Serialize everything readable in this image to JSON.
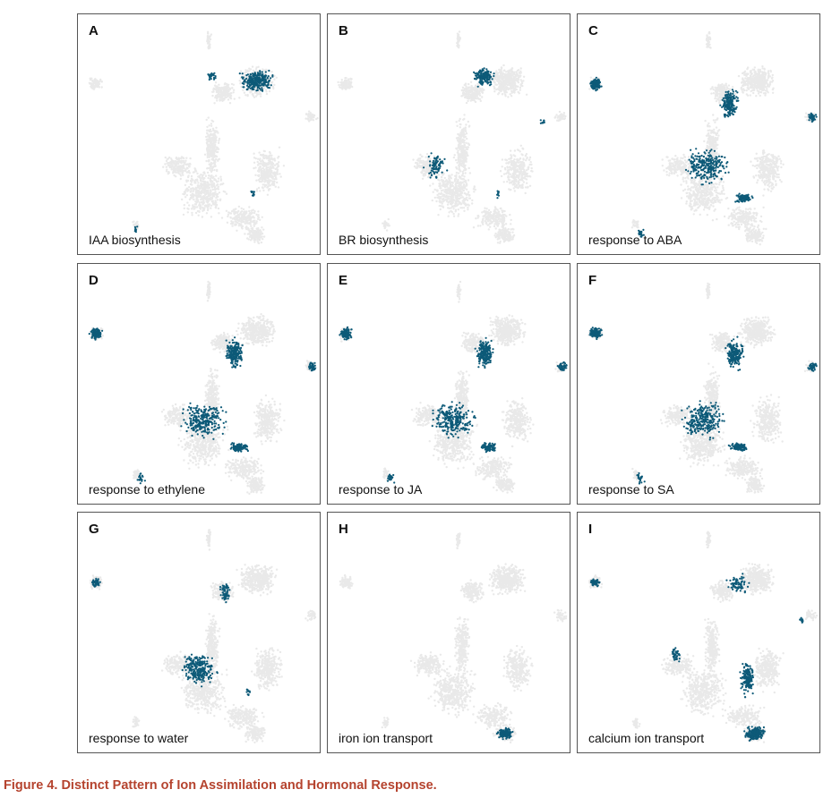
{
  "figure": {
    "caption": "Figure 4.  Distinct Pattern of Ion Assimilation and Hormonal Response.",
    "colors": {
      "highlight": "#0d5a78",
      "background_cells": "#e9e9e9",
      "border": "#555555",
      "caption": "#b5432e"
    },
    "panels": [
      {
        "letter": "A",
        "label": "IAA biosynthesis"
      },
      {
        "letter": "B",
        "label": "BR biosynthesis"
      },
      {
        "letter": "C",
        "label": "response to ABA"
      },
      {
        "letter": "D",
        "label": "response to ethylene"
      },
      {
        "letter": "E",
        "label": "response to JA"
      },
      {
        "letter": "F",
        "label": "response to SA"
      },
      {
        "letter": "G",
        "label": "response to water"
      },
      {
        "letter": "H",
        "label": "iron ion transport"
      },
      {
        "letter": "I",
        "label": "calcium ion transport"
      }
    ]
  }
}
